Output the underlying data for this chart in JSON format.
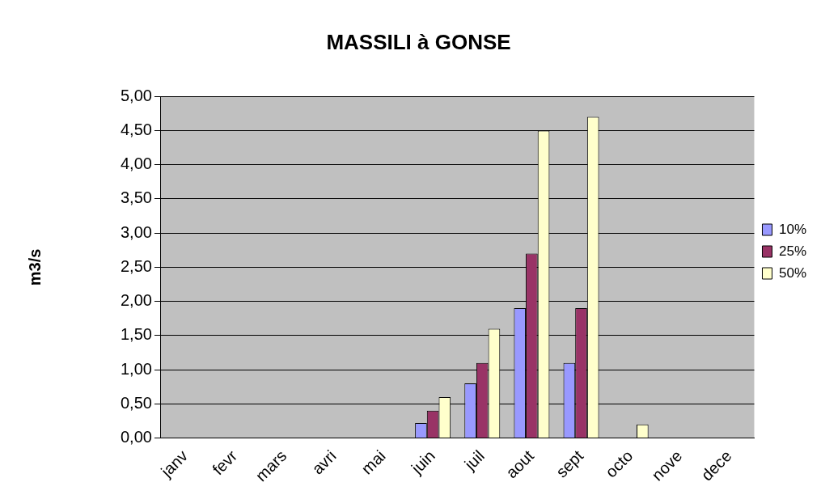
{
  "chart_data": {
    "type": "bar",
    "title": "MASSILI à GONSE",
    "ylabel": "m3/s",
    "categories": [
      "janv",
      "fevr",
      "mars",
      "avri",
      "mai",
      "juin",
      "juil",
      "aout",
      "sept",
      "octo",
      "nove",
      "dece"
    ],
    "series": [
      {
        "name": "10%",
        "color": "#9999ff",
        "values": [
          0,
          0,
          0,
          0,
          0,
          0.22,
          0.8,
          1.9,
          1.1,
          0,
          0,
          0
        ]
      },
      {
        "name": "25%",
        "color": "#993366",
        "values": [
          0,
          0,
          0,
          0,
          0,
          0.4,
          1.1,
          2.7,
          1.9,
          0,
          0,
          0
        ]
      },
      {
        "name": "50%",
        "color": "#ffffcc",
        "values": [
          0,
          0,
          0,
          0,
          0,
          0.6,
          1.6,
          4.5,
          4.7,
          0.2,
          0,
          0
        ]
      }
    ],
    "ylim": [
      0,
      5
    ],
    "yticks": [
      {
        "value": 0,
        "label": "0,00"
      },
      {
        "value": 0.5,
        "label": "0,50"
      },
      {
        "value": 1,
        "label": "1,00"
      },
      {
        "value": 1.5,
        "label": "1,50"
      },
      {
        "value": 2,
        "label": "2,00"
      },
      {
        "value": 2.5,
        "label": "2,50"
      },
      {
        "value": 3,
        "label": "3,00"
      },
      {
        "value": 3.5,
        "label": "3,50"
      },
      {
        "value": 4,
        "label": "4,00"
      },
      {
        "value": 4.5,
        "label": "4,50"
      },
      {
        "value": 5,
        "label": "5,00"
      }
    ],
    "grid": "y",
    "legend": "right"
  }
}
